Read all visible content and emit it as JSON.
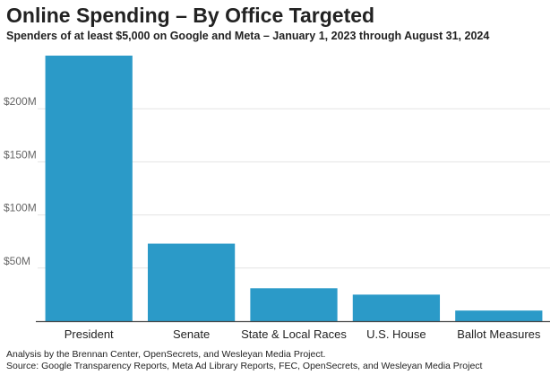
{
  "title": "Online Spending – By Office Targeted",
  "subtitle": "Spenders of at least $5,000 on Google and Meta – January 1, 2023 through August 31, 2024",
  "footnotes": {
    "line1": "Analysis by the Brennan Center, OpenSecrets, and Wesleyan Media Project.",
    "line2": "Source: Google Transparency Reports, Meta Ad Library Reports, FEC, OpenSecrets, and Wesleyan Media Project"
  },
  "chart_data": {
    "type": "bar",
    "categories": [
      "President",
      "Senate",
      "State & Local Races",
      "U.S. House",
      "Ballot Measures"
    ],
    "values": [
      250,
      73,
      31,
      25,
      10
    ],
    "unit": "M",
    "ylim": [
      0,
      250
    ],
    "yticks": [
      50,
      100,
      150,
      200
    ],
    "ytick_labels": [
      "$50M",
      "$100M",
      "$150M",
      "$200M"
    ],
    "grid": true,
    "bar_color": "#2b9ac8",
    "grid_color": "#e3e3e3",
    "axis_color": "#444444"
  }
}
